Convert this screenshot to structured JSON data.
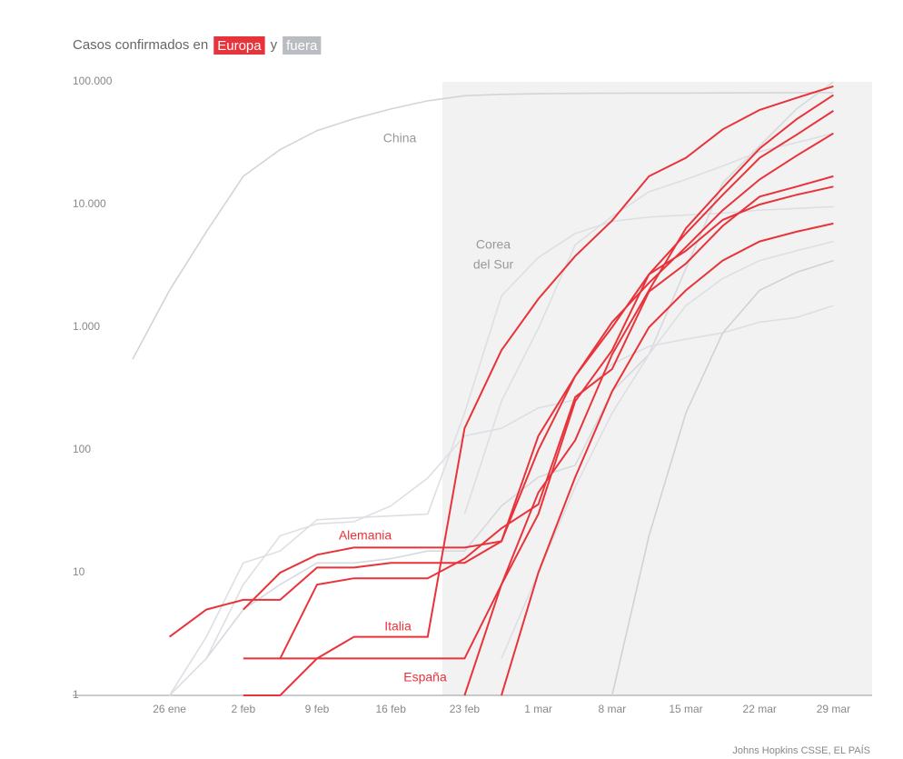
{
  "chart_data": {
    "type": "line",
    "title": "Casos confirmados en",
    "legend": [
      {
        "label": "Europa",
        "color": "#e8333a"
      },
      {
        "label": "fuera",
        "color": "#b9bcc0"
      }
    ],
    "legend_joiner": "y",
    "source": "Johns Hopkins CSSE, EL PAÍS",
    "annotations": [
      "China",
      "Corea",
      "del Sur",
      "Alemania",
      "Italia",
      "España"
    ],
    "log_scale": true,
    "ylim": [
      1,
      100000
    ],
    "yticks": [
      {
        "value": 100000,
        "label": "100.000"
      },
      {
        "value": 10000,
        "label": "10.000"
      },
      {
        "value": 1000,
        "label": "1.000"
      },
      100,
      10,
      1
    ],
    "categories": [
      null,
      "26 ene",
      null,
      "2 feb",
      null,
      "9 feb",
      null,
      "16 feb",
      null,
      "23 feb",
      null,
      "1 mar",
      null,
      "8 mar",
      null,
      "15 mar",
      null,
      "22 mar",
      null,
      "29 mar"
    ],
    "series": [
      {
        "color": "#d4d4d4",
        "values": [
          550,
          2000,
          6000,
          17000,
          28000,
          40000,
          50000,
          60000,
          70000,
          77000,
          79000,
          80000,
          80500,
          80800,
          81000,
          81000,
          81200,
          81400,
          81500,
          81600
        ]
      },
      {
        "color": "#dcdfe3",
        "values": [
          null,
          1,
          3,
          12,
          15,
          27,
          28,
          29,
          30,
          200,
          1800,
          3700,
          5800,
          7300,
          7900,
          8200,
          8500,
          9000,
          9300,
          9600
        ]
      },
      {
        "color": "#d6d9dd",
        "values": [
          null,
          1,
          2,
          5,
          8,
          12,
          12,
          13,
          15,
          15,
          35,
          60,
          75,
          300,
          600,
          3000,
          15000,
          30000,
          60000,
          100000
        ]
      },
      {
        "color": "#dcdfe3",
        "values": [
          null,
          null,
          null,
          null,
          null,
          null,
          null,
          null,
          null,
          30,
          250,
          978,
          4700,
          8000,
          12700,
          16000,
          20600,
          27000,
          32000,
          38000
        ]
      },
      {
        "color": "#dcdfe3",
        "values": [
          null,
          1,
          2,
          8,
          20,
          25,
          26,
          35,
          59,
          130,
          150,
          220,
          256,
          500,
          700,
          800,
          900,
          1100,
          1200,
          1500
        ]
      },
      {
        "color": "#dcdfe3",
        "values": [
          null,
          null,
          null,
          null,
          null,
          null,
          null,
          null,
          null,
          null,
          2,
          10,
          50,
          200,
          600,
          1500,
          2500,
          3500,
          4200,
          5000
        ]
      },
      {
        "color": "#cfd2d6",
        "values": [
          null,
          null,
          null,
          null,
          null,
          null,
          null,
          null,
          null,
          null,
          null,
          null,
          null,
          1,
          20,
          200,
          900,
          2000,
          2800,
          3500
        ]
      },
      {
        "color": "#e8333a",
        "values": [
          null,
          null,
          null,
          null,
          2,
          2,
          3,
          3,
          3,
          150,
          650,
          1700,
          3800,
          7400,
          17000,
          24000,
          41000,
          59000,
          74000,
          92000
        ]
      },
      {
        "color": "#e8333a",
        "values": [
          null,
          null,
          null,
          5,
          10,
          14,
          16,
          16,
          16,
          16,
          18,
          130,
          400,
          1000,
          2700,
          5800,
          12000,
          24000,
          37000,
          58000
        ]
      },
      {
        "color": "#e8333a",
        "values": [
          null,
          3,
          5,
          6,
          6,
          11,
          11,
          12,
          12,
          12,
          18,
          100,
          400,
          1100,
          2300,
          4500,
          9000,
          16000,
          25000,
          38000
        ]
      },
      {
        "color": "#e8333a",
        "values": [
          null,
          null,
          null,
          1,
          1,
          2,
          2,
          2,
          2,
          2,
          8,
          45,
          120,
          600,
          2000,
          6400,
          13700,
          28600,
          49500,
          78000
        ]
      },
      {
        "color": "#e8333a",
        "values": [
          null,
          null,
          null,
          2,
          2,
          8,
          9,
          9,
          9,
          13,
          23,
          36,
          270,
          456,
          1950,
          3300,
          6700,
          11600,
          14000,
          17000
        ]
      },
      {
        "color": "#e8333a",
        "values": [
          null,
          null,
          null,
          null,
          null,
          null,
          null,
          null,
          null,
          1,
          8,
          30,
          250,
          650,
          2700,
          4200,
          7500,
          10000,
          12000,
          14000
        ]
      },
      {
        "color": "#e8333a",
        "values": [
          null,
          null,
          null,
          null,
          null,
          null,
          null,
          null,
          null,
          null,
          1,
          10,
          60,
          300,
          1000,
          2000,
          3500,
          5000,
          6000,
          7000
        ]
      }
    ]
  }
}
